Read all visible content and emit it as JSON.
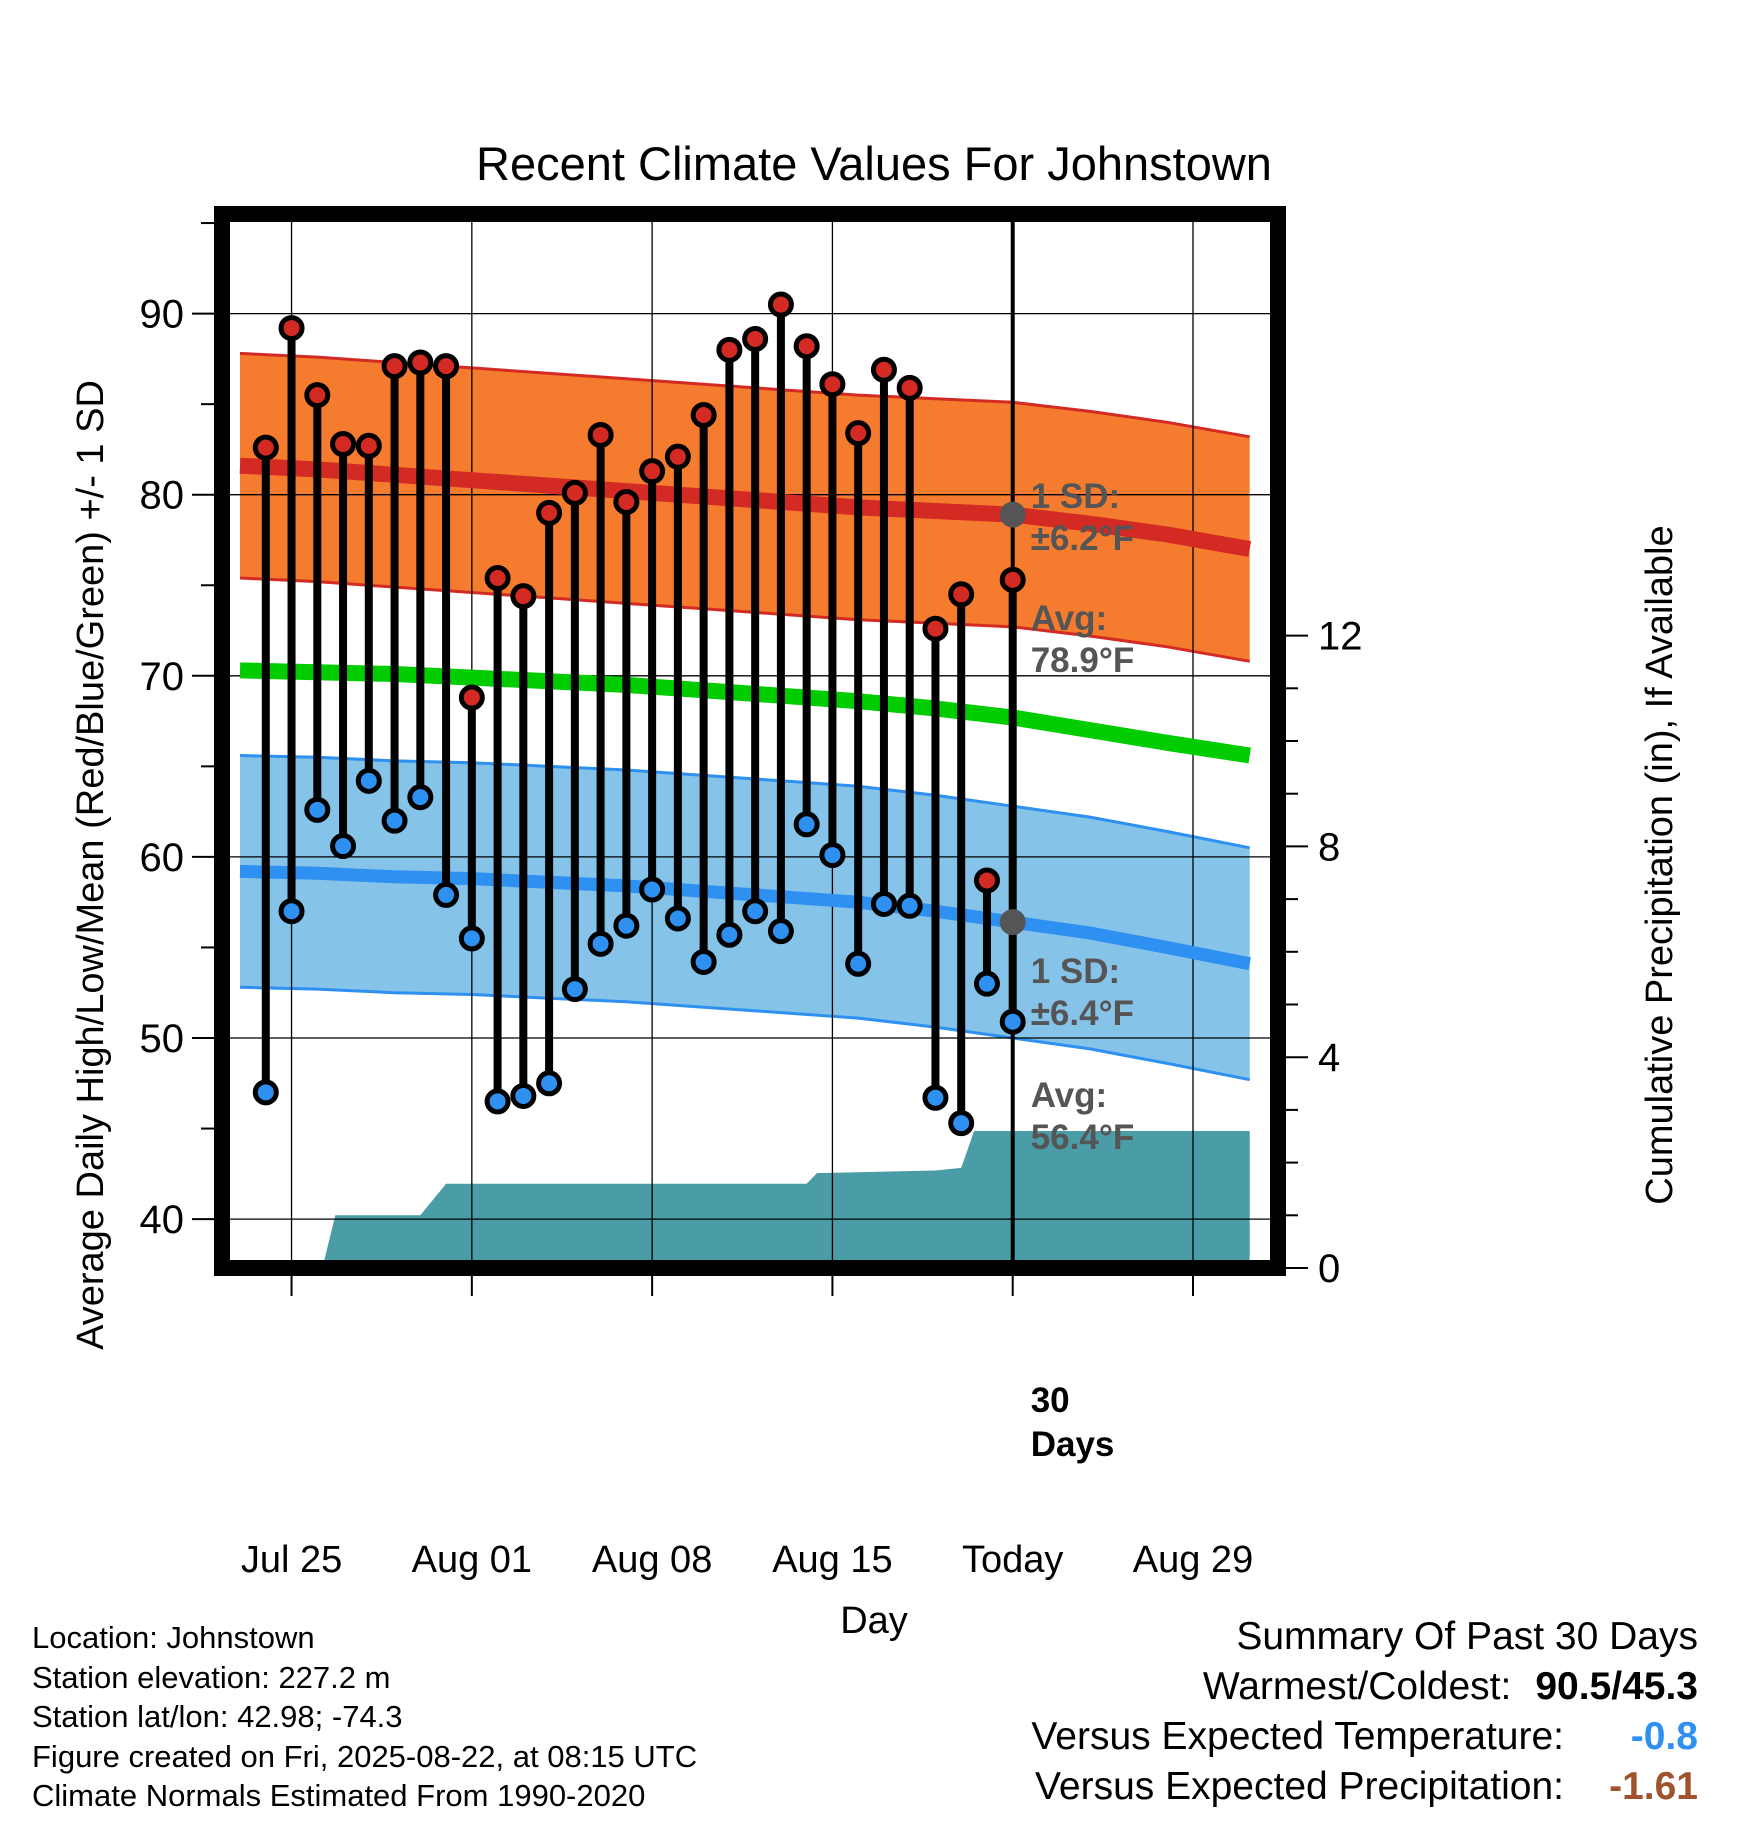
{
  "title": "Recent Climate Values For Johnstown",
  "chart_data": {
    "type": "line",
    "title": "Recent Climate Values For Johnstown",
    "xlabel": "Day",
    "ylabel": "Average Daily High/Low/Mean (Red/Blue/Green) +/- 1 SD",
    "y2label": "Cumulative Precipitation (in), If Available",
    "x_tick_labels": [
      {
        "day": 2,
        "label": "Jul 25"
      },
      {
        "day": 9,
        "label": "Aug 01"
      },
      {
        "day": 16,
        "label": "Aug 08"
      },
      {
        "day": 23,
        "label": "Aug 15"
      },
      {
        "day": 30,
        "label": "Today"
      },
      {
        "day": 37,
        "label": "Aug 29"
      }
    ],
    "x_range_days": [
      -0.7,
      40.3
    ],
    "day_origin_label": "Jul 23",
    "ylim": [
      37.3,
      95.5
    ],
    "yticks": [
      40,
      50,
      60,
      70,
      80,
      90
    ],
    "y2lim": [
      0,
      20
    ],
    "y2ticks": [
      0,
      4,
      8,
      12
    ],
    "today_day": 30,
    "grid": true,
    "daily": [
      {
        "day": 1,
        "high": 82.6,
        "low": 47.0
      },
      {
        "day": 2,
        "high": 89.2,
        "low": 57.0
      },
      {
        "day": 3,
        "high": 85.5,
        "low": 62.6
      },
      {
        "day": 4,
        "high": 82.8,
        "low": 60.6
      },
      {
        "day": 5,
        "high": 82.7,
        "low": 64.2
      },
      {
        "day": 6,
        "high": 87.1,
        "low": 62.0
      },
      {
        "day": 7,
        "high": 87.3,
        "low": 63.3
      },
      {
        "day": 8,
        "high": 87.1,
        "low": 57.9
      },
      {
        "day": 9,
        "high": 68.8,
        "low": 55.5
      },
      {
        "day": 10,
        "high": 75.4,
        "low": 46.5
      },
      {
        "day": 11,
        "high": 74.4,
        "low": 46.8
      },
      {
        "day": 12,
        "high": 79.0,
        "low": 47.5
      },
      {
        "day": 13,
        "high": 80.1,
        "low": 52.7
      },
      {
        "day": 14,
        "high": 83.3,
        "low": 55.2
      },
      {
        "day": 15,
        "high": 79.6,
        "low": 56.2
      },
      {
        "day": 16,
        "high": 81.3,
        "low": 58.2
      },
      {
        "day": 17,
        "high": 82.1,
        "low": 56.6
      },
      {
        "day": 18,
        "high": 84.4,
        "low": 54.2
      },
      {
        "day": 19,
        "high": 88.0,
        "low": 55.7
      },
      {
        "day": 20,
        "high": 88.6,
        "low": 57.0
      },
      {
        "day": 21,
        "high": 90.5,
        "low": 55.9
      },
      {
        "day": 22,
        "high": 88.2,
        "low": 61.8
      },
      {
        "day": 23,
        "high": 86.1,
        "low": 60.1
      },
      {
        "day": 24,
        "high": 83.4,
        "low": 54.1
      },
      {
        "day": 25,
        "high": 86.9,
        "low": 57.4
      },
      {
        "day": 26,
        "high": 85.9,
        "low": 57.3
      },
      {
        "day": 27,
        "high": 72.6,
        "low": 46.7
      },
      {
        "day": 28,
        "high": 74.5,
        "low": 45.3
      },
      {
        "day": 29,
        "high": 58.7,
        "low": 53.0
      },
      {
        "day": 30,
        "high": 75.3,
        "low": 50.9
      }
    ],
    "normals": {
      "days": [
        0,
        3,
        6,
        9,
        12,
        15,
        18,
        21,
        24,
        27,
        30,
        33,
        36,
        39.2
      ],
      "high_avg": [
        81.6,
        81.4,
        81.1,
        80.8,
        80.5,
        80.2,
        79.9,
        79.6,
        79.3,
        79.1,
        78.9,
        78.4,
        77.8,
        77.0
      ],
      "high_sd": 6.2,
      "mean_avg": [
        70.3,
        70.2,
        70.1,
        69.9,
        69.7,
        69.5,
        69.2,
        68.9,
        68.6,
        68.2,
        67.7,
        67.0,
        66.3,
        65.6
      ],
      "low_avg": [
        59.2,
        59.1,
        58.9,
        58.8,
        58.6,
        58.4,
        58.1,
        57.8,
        57.5,
        57.0,
        56.4,
        55.8,
        55.0,
        54.1
      ],
      "low_sd": 6.4
    },
    "precip": {
      "days": [
        3.2,
        3.7,
        7.0,
        8.0,
        9.0,
        22.0,
        22.4,
        27.0,
        28.0,
        28.5,
        39.2
      ],
      "values": [
        0.0,
        1.0,
        1.0,
        1.6,
        1.6,
        1.6,
        1.8,
        1.85,
        1.9,
        2.6,
        2.6
      ]
    },
    "annotations": {
      "high_sd": {
        "line1": "1 SD:",
        "line2": "±6.2°F"
      },
      "high_avg": {
        "line1": "Avg:",
        "line2": "78.9°F"
      },
      "low_sd": {
        "line1": "1 SD:",
        "line2": "±6.4°F"
      },
      "low_avg": {
        "line1": "Avg:",
        "line2": "56.4°F"
      },
      "precip_days": {
        "line1": "30",
        "line2": "Days"
      }
    },
    "colors": {
      "high_band": "#F57C2E",
      "high_line": "#D42A24",
      "mean_line": "#00CC00",
      "low_band": "#86C3E8",
      "low_line": "#2E90F0",
      "precip": "#4A9CA6",
      "high_marker": "#D42A24",
      "low_marker": "#2E90F0",
      "annotation_text": "#555555",
      "today_marker": "#555555"
    }
  },
  "info": {
    "location": "Location: Johnstown",
    "elevation": "Station elevation: 227.2 m",
    "latlon": "Station lat/lon: 42.98; -74.3",
    "created": "Figure created on Fri, 2025-08-22, at 08:15 UTC",
    "normals": "Climate Normals Estimated From 1990-2020"
  },
  "summary": {
    "heading": "Summary Of Past 30 Days",
    "warm_cold_label": "Warmest/Coldest:",
    "warm_cold_value": "90.5/45.3",
    "temp_label": "Versus Expected Temperature:",
    "temp_value": "-0.8",
    "temp_color": "#2E90F0",
    "precip_label": "Versus Expected Precipitation:",
    "precip_value": "-1.61",
    "precip_color": "#A0522D"
  }
}
